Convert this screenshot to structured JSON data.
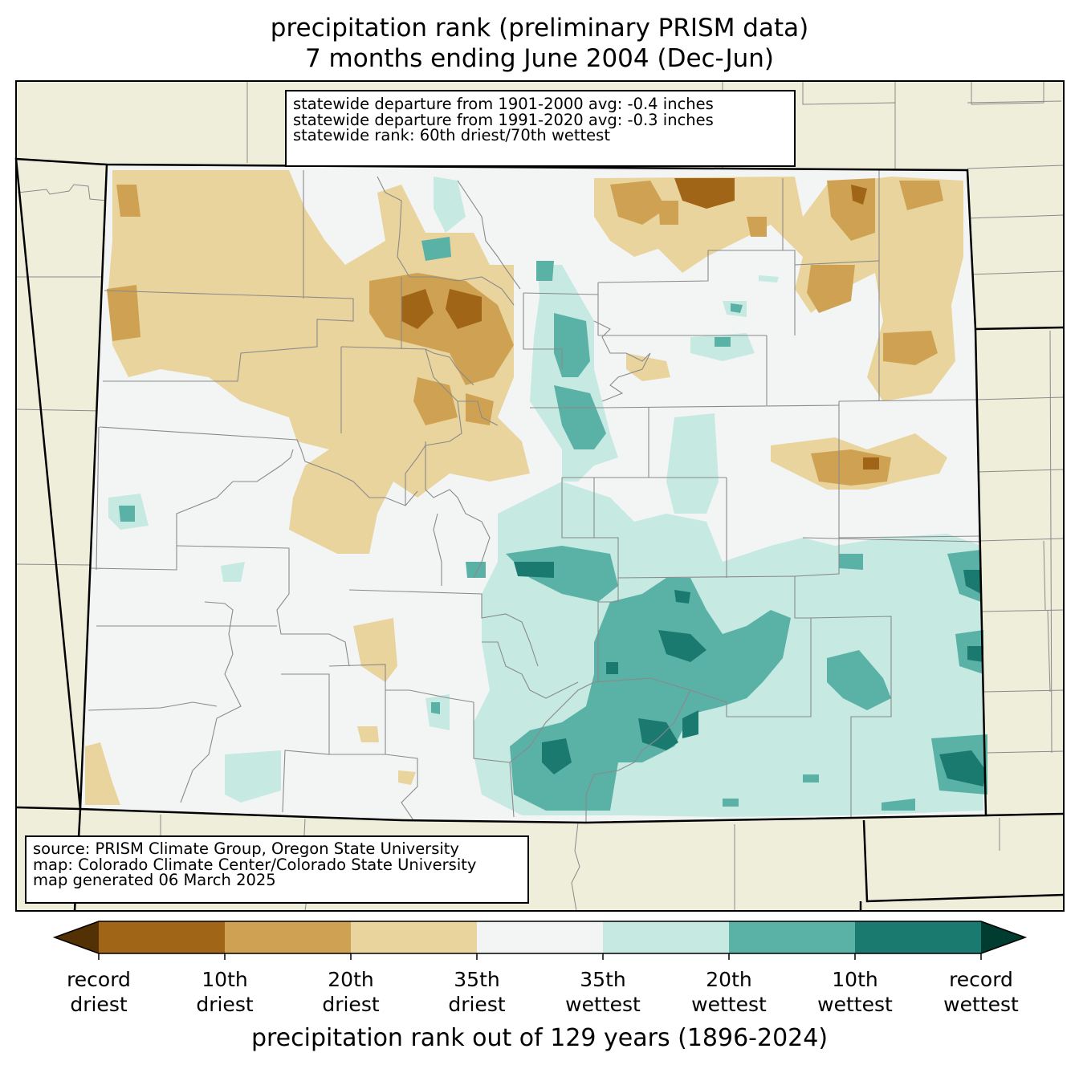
{
  "title": {
    "line1": "precipitation rank (preliminary PRISM data)",
    "line2": "7 months ending June 2004 (Dec-Jun)"
  },
  "stats_box": {
    "line1": "statewide departure from 1901-2000 avg: -0.4 inches",
    "line2": "statewide departure from 1991-2020 avg: -0.3 inches",
    "line3": "statewide rank: 60th driest/70th wettest"
  },
  "source_box": {
    "line1": "source: PRISM Climate Group, Oregon State University",
    "line2": "map: Colorado Climate Center/Colorado State University",
    "line3": "map generated 06 March 2025"
  },
  "colorbar": {
    "title": "precipitation rank out of 129 years (1896-2024)",
    "labels": [
      {
        "line1": "record",
        "line2": "driest"
      },
      {
        "line1": "10th",
        "line2": "driest"
      },
      {
        "line1": "20th",
        "line2": "driest"
      },
      {
        "line1": "35th",
        "line2": "driest"
      },
      {
        "line1": "35th",
        "line2": "wettest"
      },
      {
        "line1": "20th",
        "line2": "wettest"
      },
      {
        "line1": "10th",
        "line2": "wettest"
      },
      {
        "line1": "record",
        "line2": "wettest"
      }
    ],
    "colors": [
      "#543005",
      "#a16518",
      "#cfa253",
      "#e9d49d",
      "#f3f5f4",
      "#c6e9e2",
      "#5ab1a6",
      "#1b7a70",
      "#003c30"
    ]
  },
  "map_colors": {
    "background_land": "#efeedb",
    "normal": "#f3f5f4"
  }
}
